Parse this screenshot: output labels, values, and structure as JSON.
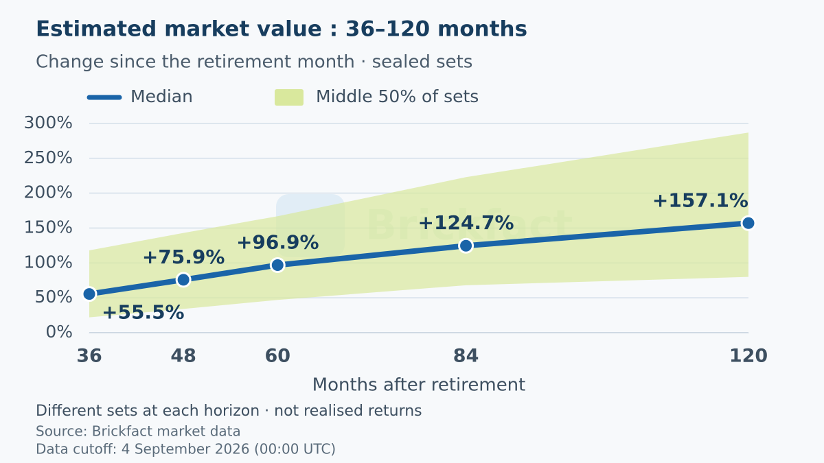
{
  "chart_data": {
    "type": "line",
    "title": "Estimated market value : 36–120 months",
    "subtitle": "Change since the retirement month · sealed sets",
    "x_label": "Months after retirement",
    "note": "Different sets at each horizon · not realised returns",
    "source": "Source: Brickfact market data",
    "cutoff": "Data cutoff: 4 September 2026 (00:00 UTC)",
    "watermark": "Brickfact",
    "x": [
      36,
      48,
      60,
      84,
      120
    ],
    "series": [
      {
        "name": "Median",
        "color": "#1a64a8",
        "values": [
          55.5,
          75.9,
          96.9,
          124.7,
          157.1
        ],
        "value_labels": [
          "+55.5%",
          "+75.9%",
          "+96.9%",
          "+124.7%",
          "+157.1%"
        ]
      }
    ],
    "band": {
      "name": "Middle 50% of sets",
      "color": "#d9e89d",
      "lower": [
        22,
        34,
        47,
        68,
        80
      ],
      "upper": [
        118,
        143,
        167,
        223,
        287
      ]
    },
    "xlim": [
      36,
      120
    ],
    "xticks": [
      36,
      48,
      60,
      84,
      120
    ],
    "ylim": [
      0,
      300
    ],
    "yticks": [
      {
        "value": 0,
        "label": "0%"
      },
      {
        "value": 50,
        "label": "50%"
      },
      {
        "value": 100,
        "label": "100%"
      },
      {
        "value": 150,
        "label": "150%"
      },
      {
        "value": 200,
        "label": "200%"
      },
      {
        "value": 250,
        "label": "250%"
      },
      {
        "value": 300,
        "label": "300%"
      }
    ],
    "grid": true
  }
}
